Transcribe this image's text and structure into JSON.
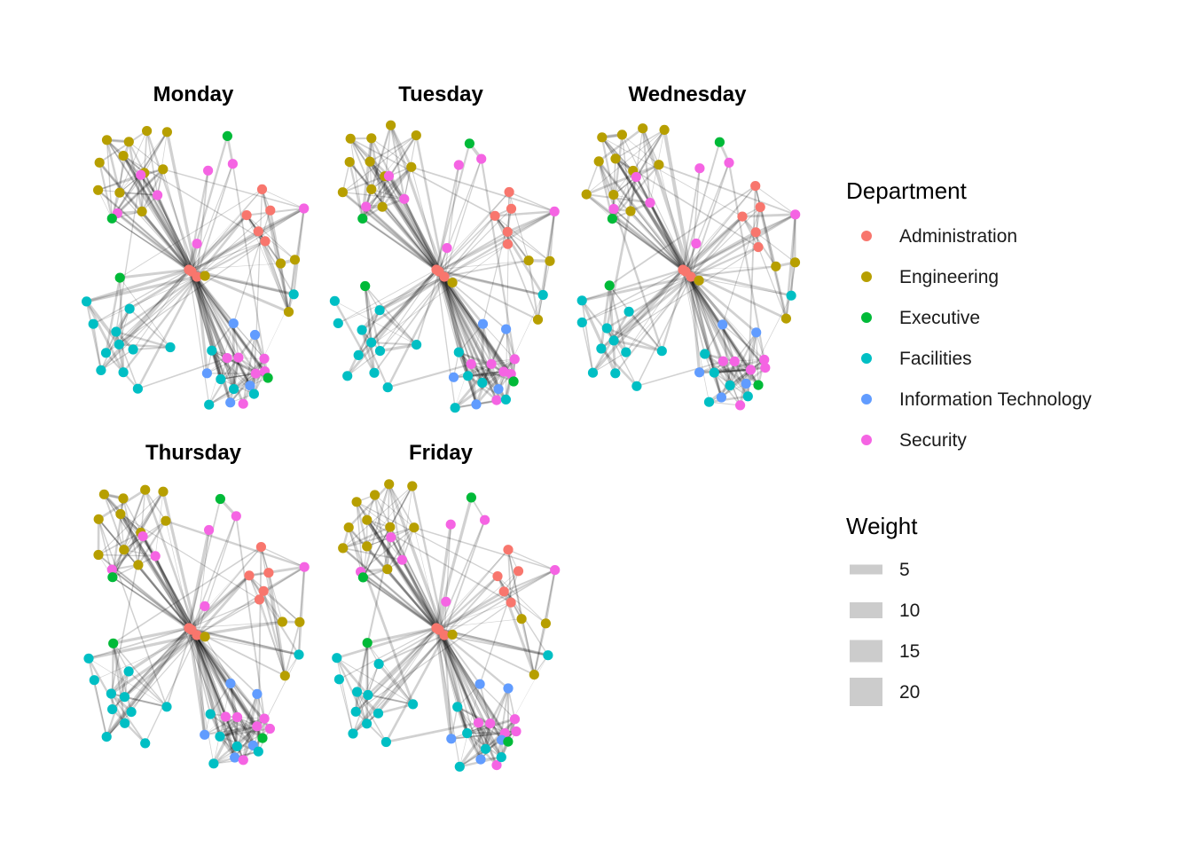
{
  "chart_data": {
    "type": "network",
    "panels": [
      {
        "title": "Monday"
      },
      {
        "title": "Tuesday"
      },
      {
        "title": "Wednesday"
      },
      {
        "title": "Thursday"
      },
      {
        "title": "Friday"
      }
    ],
    "legend": {
      "department": {
        "title": "Department",
        "items": [
          {
            "label": "Administration",
            "color": "#F8766D"
          },
          {
            "label": "Engineering",
            "color": "#B79F00"
          },
          {
            "label": "Executive",
            "color": "#00BA38"
          },
          {
            "label": "Facilities",
            "color": "#00BFC4"
          },
          {
            "label": "Information Technology",
            "color": "#619CFF"
          },
          {
            "label": "Security",
            "color": "#F564E3"
          }
        ]
      },
      "weight": {
        "title": "Weight",
        "items": [
          {
            "label": "5",
            "value": 5
          },
          {
            "label": "10",
            "value": 10
          },
          {
            "label": "15",
            "value": 15
          },
          {
            "label": "20",
            "value": 20
          }
        ]
      }
    },
    "edge_color": "#000000",
    "legend_swatch_color": "#CCCCCC",
    "legend_placement": "right",
    "grid": false,
    "axes": false
  }
}
